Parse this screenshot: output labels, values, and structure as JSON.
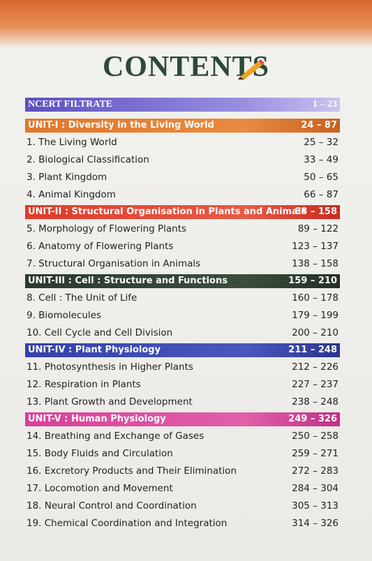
{
  "title": "CONTENTS",
  "sections": [
    {
      "label": "NCERT FILTRATE",
      "pages": "1 – 23",
      "items": []
    },
    {
      "label": "UNIT-I : Diversity in the Living World",
      "pages": "24 – 87",
      "items": [
        {
          "label": "1. The Living World",
          "pages": "25 – 32"
        },
        {
          "label": "2. Biological Classification",
          "pages": "33 – 49"
        },
        {
          "label": "3. Plant Kingdom",
          "pages": "50 – 65"
        },
        {
          "label": "4. Animal Kingdom",
          "pages": "66 – 87"
        }
      ]
    },
    {
      "label": "UNIT-II : Structural Organisation in Plants and Animals",
      "pages": "88 – 158",
      "items": [
        {
          "label": "5. Morphology of Flowering Plants",
          "pages": "89 – 122"
        },
        {
          "label": "6. Anatomy of Flowering Plants",
          "pages": "123 – 137"
        },
        {
          "label": "7. Structural Organisation in Animals",
          "pages": "138 – 158"
        }
      ]
    },
    {
      "label": "UNIT-III : Cell : Structure and Functions",
      "pages": "159 – 210",
      "items": [
        {
          "label": "8. Cell : The Unit of Life",
          "pages": "160 – 178"
        },
        {
          "label": "9. Biomolecules",
          "pages": "179 – 199"
        },
        {
          "label": "10. Cell Cycle and Cell Division",
          "pages": "200 – 210"
        }
      ]
    },
    {
      "label": "UNIT-IV : Plant Physiology",
      "pages": "211 – 248",
      "items": [
        {
          "label": "11. Photosynthesis in Higher Plants",
          "pages": "212 – 226"
        },
        {
          "label": "12. Respiration in Plants",
          "pages": "227 – 237"
        },
        {
          "label": "13. Plant Growth and Development",
          "pages": "238 – 248"
        }
      ]
    },
    {
      "label": "UNIT-V : Human Physiology",
      "pages": "249 – 326",
      "items": [
        {
          "label": "14. Breathing and Exchange of Gases",
          "pages": "250 – 258"
        },
        {
          "label": "15. Body Fluids and Circulation",
          "pages": "259 – 271"
        },
        {
          "label": "16. Excretory Products and Their Elimination",
          "pages": "272 – 283"
        },
        {
          "label": "17. Locomotion and Movement",
          "pages": "284 – 304"
        },
        {
          "label": "18. Neural Control and Coordination",
          "pages": "305 – 313"
        },
        {
          "label": "19. Chemical Coordination and Integration",
          "pages": "314 – 326"
        }
      ]
    }
  ]
}
